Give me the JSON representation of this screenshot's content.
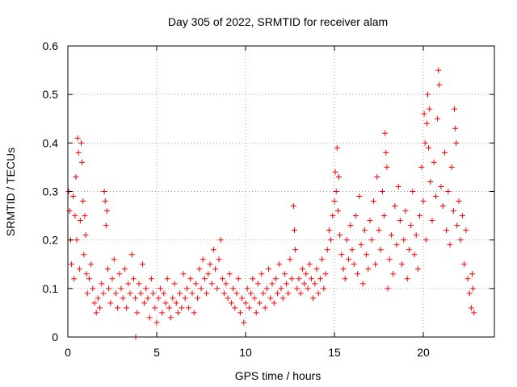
{
  "chart_data": {
    "type": "scatter",
    "title": "Day 305 of 2022, SRMTID for receiver alam",
    "xlabel": "GPS time / hours",
    "ylabel": "SRMTID / TECUs",
    "xlim": [
      0,
      24
    ],
    "ylim": [
      0,
      0.6
    ],
    "xticks": [
      0,
      5,
      10,
      15,
      20
    ],
    "yticks": [
      0,
      0.1,
      0.2,
      0.3,
      0.4,
      0.5,
      0.6
    ],
    "xtick_labels": [
      "0",
      "5",
      "10",
      "15",
      "20"
    ],
    "ytick_labels": [
      "0",
      "0.1",
      "0.2",
      "0.3",
      "0.4",
      "0.5",
      "0.6"
    ],
    "grid": true,
    "marker": "+",
    "color": "#ff0000",
    "series": [
      {
        "name": "SRMTID",
        "points": [
          [
            0.05,
            0.3
          ],
          [
            0.1,
            0.26
          ],
          [
            0.15,
            0.2
          ],
          [
            0.2,
            0.15
          ],
          [
            0.3,
            0.29
          ],
          [
            0.35,
            0.12
          ],
          [
            0.4,
            0.25
          ],
          [
            0.45,
            0.33
          ],
          [
            0.5,
            0.2
          ],
          [
            0.55,
            0.41
          ],
          [
            0.6,
            0.38
          ],
          [
            0.65,
            0.14
          ],
          [
            0.7,
            0.24
          ],
          [
            0.75,
            0.4
          ],
          [
            0.8,
            0.36
          ],
          [
            0.85,
            0.28
          ],
          [
            0.9,
            0.17
          ],
          [
            0.95,
            0.25
          ],
          [
            1.0,
            0.21
          ],
          [
            1.05,
            0.13
          ],
          [
            1.1,
            0.09
          ],
          [
            1.2,
            0.12
          ],
          [
            1.3,
            0.15
          ],
          [
            1.4,
            0.1
          ],
          [
            1.5,
            0.07
          ],
          [
            1.6,
            0.05
          ],
          [
            1.7,
            0.08
          ],
          [
            1.8,
            0.06
          ],
          [
            1.9,
            0.11
          ],
          [
            2.0,
            0.09
          ],
          [
            2.05,
            0.3
          ],
          [
            2.1,
            0.28
          ],
          [
            2.15,
            0.23
          ],
          [
            2.2,
            0.26
          ],
          [
            2.25,
            0.14
          ],
          [
            2.3,
            0.1
          ],
          [
            2.4,
            0.07
          ],
          [
            2.5,
            0.12
          ],
          [
            2.6,
            0.16
          ],
          [
            2.7,
            0.09
          ],
          [
            2.8,
            0.06
          ],
          [
            2.9,
            0.13
          ],
          [
            3.0,
            0.1
          ],
          [
            3.1,
            0.08
          ],
          [
            3.2,
            0.14
          ],
          [
            3.3,
            0.06
          ],
          [
            3.4,
            0.11
          ],
          [
            3.5,
            0.09
          ],
          [
            3.6,
            0.17
          ],
          [
            3.7,
            0.12
          ],
          [
            3.8,
            0.08
          ],
          [
            3.82,
            0.0
          ],
          [
            3.9,
            0.05
          ],
          [
            4.0,
            0.11
          ],
          [
            4.1,
            0.09
          ],
          [
            4.2,
            0.15
          ],
          [
            4.3,
            0.07
          ],
          [
            4.4,
            0.1
          ],
          [
            4.5,
            0.08
          ],
          [
            4.6,
            0.04
          ],
          [
            4.7,
            0.12
          ],
          [
            4.8,
            0.09
          ],
          [
            4.9,
            0.06
          ],
          [
            5.0,
            0.03
          ],
          [
            5.1,
            0.08
          ],
          [
            5.2,
            0.1
          ],
          [
            5.3,
            0.05
          ],
          [
            5.4,
            0.09
          ],
          [
            5.5,
            0.07
          ],
          [
            5.6,
            0.12
          ],
          [
            5.7,
            0.06
          ],
          [
            5.8,
            0.04
          ],
          [
            5.9,
            0.08
          ],
          [
            6.0,
            0.11
          ],
          [
            6.1,
            0.07
          ],
          [
            6.2,
            0.05
          ],
          [
            6.3,
            0.09
          ],
          [
            6.4,
            0.06
          ],
          [
            6.5,
            0.13
          ],
          [
            6.6,
            0.08
          ],
          [
            6.7,
            0.1
          ],
          [
            6.8,
            0.06
          ],
          [
            6.9,
            0.12
          ],
          [
            7.0,
            0.09
          ],
          [
            7.1,
            0.05
          ],
          [
            7.2,
            0.11
          ],
          [
            7.3,
            0.08
          ],
          [
            7.4,
            0.14
          ],
          [
            7.5,
            0.1
          ],
          [
            7.6,
            0.16
          ],
          [
            7.7,
            0.12
          ],
          [
            7.8,
            0.09
          ],
          [
            7.9,
            0.13
          ],
          [
            8.0,
            0.15
          ],
          [
            8.1,
            0.11
          ],
          [
            8.2,
            0.18
          ],
          [
            8.3,
            0.14
          ],
          [
            8.4,
            0.1
          ],
          [
            8.5,
            0.16
          ],
          [
            8.6,
            0.2
          ],
          [
            8.7,
            0.12
          ],
          [
            8.8,
            0.09
          ],
          [
            8.9,
            0.11
          ],
          [
            9.0,
            0.08
          ],
          [
            9.1,
            0.13
          ],
          [
            9.2,
            0.07
          ],
          [
            9.3,
            0.1
          ],
          [
            9.4,
            0.06
          ],
          [
            9.5,
            0.09
          ],
          [
            9.6,
            0.12
          ],
          [
            9.7,
            0.05
          ],
          [
            9.8,
            0.08
          ],
          [
            9.9,
            0.03
          ],
          [
            10.0,
            0.07
          ],
          [
            10.1,
            0.1
          ],
          [
            10.2,
            0.06
          ],
          [
            10.3,
            0.09
          ],
          [
            10.4,
            0.12
          ],
          [
            10.5,
            0.08
          ],
          [
            10.6,
            0.05
          ],
          [
            10.7,
            0.11
          ],
          [
            10.8,
            0.07
          ],
          [
            10.9,
            0.13
          ],
          [
            11.0,
            0.09
          ],
          [
            11.1,
            0.06
          ],
          [
            11.2,
            0.1
          ],
          [
            11.3,
            0.14
          ],
          [
            11.4,
            0.08
          ],
          [
            11.5,
            0.11
          ],
          [
            11.6,
            0.07
          ],
          [
            11.7,
            0.12
          ],
          [
            11.8,
            0.09
          ],
          [
            11.9,
            0.15
          ],
          [
            12.0,
            0.1
          ],
          [
            12.1,
            0.08
          ],
          [
            12.2,
            0.13
          ],
          [
            12.3,
            0.11
          ],
          [
            12.4,
            0.09
          ],
          [
            12.5,
            0.16
          ],
          [
            12.6,
            0.12
          ],
          [
            12.7,
            0.27
          ],
          [
            12.75,
            0.22
          ],
          [
            12.8,
            0.18
          ],
          [
            12.9,
            0.1
          ],
          [
            13.0,
            0.12
          ],
          [
            13.1,
            0.09
          ],
          [
            13.2,
            0.14
          ],
          [
            13.3,
            0.11
          ],
          [
            13.4,
            0.13
          ],
          [
            13.5,
            0.1
          ],
          [
            13.6,
            0.15
          ],
          [
            13.7,
            0.12
          ],
          [
            13.8,
            0.08
          ],
          [
            13.9,
            0.11
          ],
          [
            14.0,
            0.14
          ],
          [
            14.1,
            0.09
          ],
          [
            14.2,
            0.12
          ],
          [
            14.3,
            0.16
          ],
          [
            14.4,
            0.1
          ],
          [
            14.5,
            0.13
          ],
          [
            14.6,
            0.18
          ],
          [
            14.7,
            0.22
          ],
          [
            14.8,
            0.2
          ],
          [
            14.9,
            0.25
          ],
          [
            15.0,
            0.28
          ],
          [
            15.05,
            0.34
          ],
          [
            15.1,
            0.3
          ],
          [
            15.15,
            0.39
          ],
          [
            15.2,
            0.26
          ],
          [
            15.25,
            0.33
          ],
          [
            15.3,
            0.21
          ],
          [
            15.4,
            0.17
          ],
          [
            15.5,
            0.14
          ],
          [
            15.6,
            0.12
          ],
          [
            15.7,
            0.2
          ],
          [
            15.8,
            0.16
          ],
          [
            15.9,
            0.23
          ],
          [
            16.0,
            0.18
          ],
          [
            16.1,
            0.15
          ],
          [
            16.2,
            0.25
          ],
          [
            16.3,
            0.13
          ],
          [
            16.4,
            0.29
          ],
          [
            16.5,
            0.19
          ],
          [
            16.6,
            0.11
          ],
          [
            16.7,
            0.22
          ],
          [
            16.8,
            0.17
          ],
          [
            16.9,
            0.14
          ],
          [
            17.0,
            0.24
          ],
          [
            17.1,
            0.2
          ],
          [
            17.2,
            0.28
          ],
          [
            17.3,
            0.15
          ],
          [
            17.4,
            0.33
          ],
          [
            17.5,
            0.22
          ],
          [
            17.6,
            0.18
          ],
          [
            17.7,
            0.3
          ],
          [
            17.8,
            0.25
          ],
          [
            17.85,
            0.42
          ],
          [
            17.9,
            0.38
          ],
          [
            17.95,
            0.35
          ],
          [
            18.0,
            0.1
          ],
          [
            18.1,
            0.16
          ],
          [
            18.2,
            0.21
          ],
          [
            18.3,
            0.13
          ],
          [
            18.4,
            0.27
          ],
          [
            18.5,
            0.19
          ],
          [
            18.6,
            0.31
          ],
          [
            18.7,
            0.24
          ],
          [
            18.8,
            0.15
          ],
          [
            18.9,
            0.2
          ],
          [
            19.0,
            0.26
          ],
          [
            19.1,
            0.12
          ],
          [
            19.2,
            0.18
          ],
          [
            19.3,
            0.23
          ],
          [
            19.4,
            0.3
          ],
          [
            19.5,
            0.17
          ],
          [
            19.6,
            0.21
          ],
          [
            19.7,
            0.14
          ],
          [
            19.8,
            0.25
          ],
          [
            19.9,
            0.35
          ],
          [
            20.0,
            0.28
          ],
          [
            20.05,
            0.46
          ],
          [
            20.1,
            0.4
          ],
          [
            20.15,
            0.2
          ],
          [
            20.2,
            0.44
          ],
          [
            20.25,
            0.5
          ],
          [
            20.3,
            0.39
          ],
          [
            20.35,
            0.47
          ],
          [
            20.4,
            0.32
          ],
          [
            20.5,
            0.24
          ],
          [
            20.6,
            0.36
          ],
          [
            20.7,
            0.29
          ],
          [
            20.8,
            0.45
          ],
          [
            20.85,
            0.55
          ],
          [
            20.9,
            0.52
          ],
          [
            21.0,
            0.31
          ],
          [
            21.1,
            0.27
          ],
          [
            21.2,
            0.38
          ],
          [
            21.3,
            0.22
          ],
          [
            21.4,
            0.3
          ],
          [
            21.5,
            0.19
          ],
          [
            21.6,
            0.35
          ],
          [
            21.7,
            0.26
          ],
          [
            21.75,
            0.47
          ],
          [
            21.8,
            0.43
          ],
          [
            21.85,
            0.4
          ],
          [
            21.9,
            0.23
          ],
          [
            22.0,
            0.28
          ],
          [
            22.1,
            0.2
          ],
          [
            22.2,
            0.25
          ],
          [
            22.3,
            0.15
          ],
          [
            22.4,
            0.22
          ],
          [
            22.5,
            0.12
          ],
          [
            22.6,
            0.09
          ],
          [
            22.7,
            0.06
          ],
          [
            22.75,
            0.13
          ],
          [
            22.8,
            0.1
          ],
          [
            22.85,
            0.05
          ]
        ]
      }
    ]
  }
}
